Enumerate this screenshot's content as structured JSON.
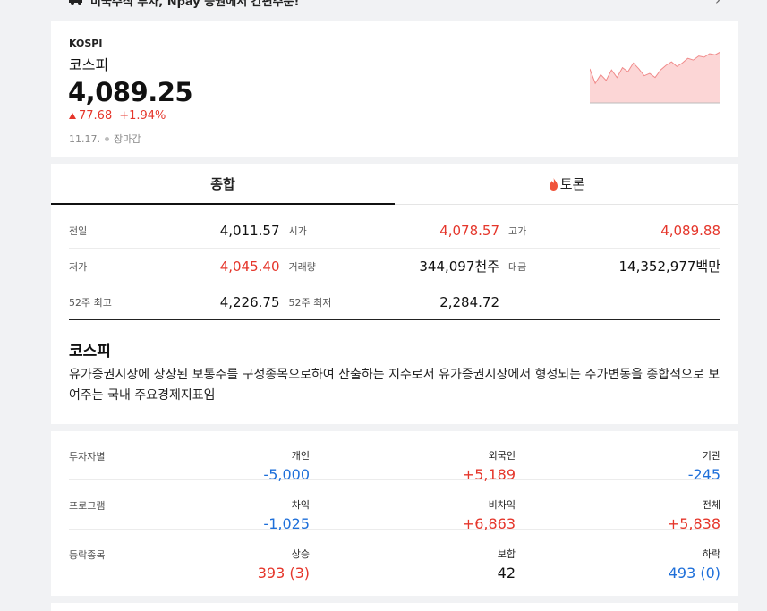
{
  "banner": {
    "text": "미국주식 투자, Npay 증권에서 간편주문!",
    "chevron": "›"
  },
  "index": {
    "code": "KOSPI",
    "name": "코스피",
    "value": "4,089.25",
    "change": "77.68",
    "change_pct": "+1.94%",
    "date": "11.17.",
    "status": "장마감",
    "direction": "up"
  },
  "tabs": [
    {
      "label": "종합",
      "active": true
    },
    {
      "label": "토론",
      "active": false,
      "icon": "flame-icon"
    }
  ],
  "stats": [
    [
      {
        "label": "전일",
        "value": "4,011.57",
        "color": "neutral"
      },
      {
        "label": "시가",
        "value": "4,078.57",
        "color": "up"
      },
      {
        "label": "고가",
        "value": "4,089.88",
        "color": "up"
      }
    ],
    [
      {
        "label": "저가",
        "value": "4,045.40",
        "color": "up"
      },
      {
        "label": "거래량",
        "value": "344,097천주",
        "color": "neutral"
      },
      {
        "label": "대금",
        "value": "14,352,977백만",
        "color": "neutral"
      }
    ],
    [
      {
        "label": "52주 최고",
        "value": "4,226.75",
        "color": "neutral"
      },
      {
        "label": "52주 최저",
        "value": "2,284.72",
        "color": "neutral"
      }
    ]
  ],
  "description": {
    "title": "코스피",
    "text": "유가증권시장에 상장된 보통주를 구성종목으로하여 산출하는 지수로서 유가증권시장에서 형성되는 주가변동을 종합적으로 보여주는 국내 주요경제지표임"
  },
  "investors": [
    {
      "label": "투자자별",
      "cols": [
        {
          "head": "개인",
          "value": "-5,000",
          "color": "down"
        },
        {
          "head": "외국인",
          "value": "+5,189",
          "color": "up"
        },
        {
          "head": "기관",
          "value": "-245",
          "color": "down"
        }
      ]
    },
    {
      "label": "프로그램",
      "cols": [
        {
          "head": "차익",
          "value": "-1,025",
          "color": "down"
        },
        {
          "head": "비차익",
          "value": "+6,863",
          "color": "up"
        },
        {
          "head": "전체",
          "value": "+5,838",
          "color": "up"
        }
      ]
    },
    {
      "label": "등락종목",
      "cols": [
        {
          "head": "상승",
          "value": "393 (3)",
          "color": "up"
        },
        {
          "head": "보합",
          "value": "42",
          "color": "neutral"
        },
        {
          "head": "하락",
          "value": "493 (0)",
          "color": "down"
        }
      ]
    }
  ],
  "colors": {
    "up": "#e5362b",
    "down": "#1e6fd9",
    "spark_fill": "#fcd6d6",
    "spark_line": "#f08a8a"
  },
  "sparkline": {
    "baseline": 4011.57,
    "values": [
      4060,
      4035,
      4050,
      4040,
      4058,
      4045,
      4062,
      4055,
      4070,
      4060,
      4048,
      4052,
      4045,
      4058,
      4066,
      4072,
      4064,
      4070,
      4078,
      4075,
      4082,
      4080,
      4086,
      4084,
      4089
    ]
  }
}
